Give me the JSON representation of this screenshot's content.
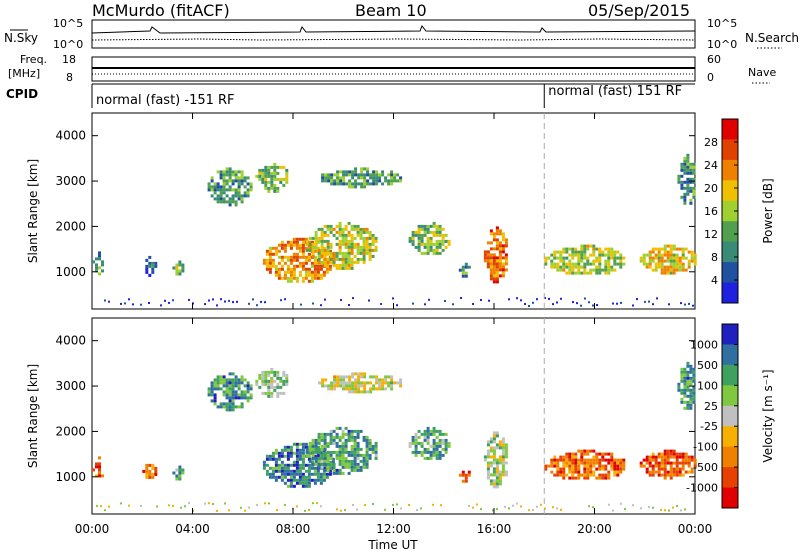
{
  "header": {
    "station": "McMurdo (fitACF)",
    "beam": "Beam 10",
    "date": "05/Sep/2015"
  },
  "side_labels": {
    "n_sky": "N.Sky",
    "n_search": "N.Search",
    "freq": "Freq.",
    "freq_unit": "[MHz]",
    "nave": "Nave",
    "cpid": "CPID",
    "noise_top": "10^5",
    "noise_bottom": "10^0",
    "freq_top": "18",
    "freq_bottom": "8",
    "nave_top": "60",
    "nave_bottom": "0"
  },
  "cpid_segments": [
    {
      "label": "normal (fast) -151 RF",
      "start_hour": 0
    },
    {
      "label": "normal (fast) 151 RF",
      "start_hour": 18
    }
  ],
  "colors": {
    "power": [
      "#2020e0",
      "#2050a0",
      "#3a8a78",
      "#50a050",
      "#a0d030",
      "#f0c000",
      "#f08000",
      "#e04000",
      "#e00000"
    ],
    "velocity": [
      "#e00000",
      "#e84000",
      "#f08000",
      "#f8b000",
      "#c0c0c0",
      "#80c840",
      "#40a060",
      "#3070a0",
      "#2020c0"
    ]
  },
  "chart_data": [
    {
      "type": "heatmap",
      "name": "power",
      "ylabel": "Slant Range [km]",
      "xlabel": "Time UT",
      "xlim": [
        0,
        24
      ],
      "ylim": [
        180,
        4500
      ],
      "x_ticks": [
        "00:00",
        "04:00",
        "08:00",
        "12:00",
        "16:00",
        "20:00",
        "00:00"
      ],
      "y_ticks": [
        1000,
        2000,
        3000,
        4000
      ],
      "colorbar": {
        "label": "Power [dB]",
        "ticks": [
          "4",
          "8",
          "12",
          "16",
          "20",
          "24",
          "28"
        ]
      },
      "cpid_change_hour": 18,
      "echo_regions": [
        {
          "hours": [
            0.0,
            0.4
          ],
          "range_km": [
            950,
            1450
          ],
          "level": 0.3
        },
        {
          "hours": [
            2.0,
            2.5
          ],
          "range_km": [
            950,
            1350
          ],
          "level": 0.2
        },
        {
          "hours": [
            3.2,
            3.6
          ],
          "range_km": [
            950,
            1250
          ],
          "level": 0.4
        },
        {
          "hours": [
            4.6,
            6.3
          ],
          "range_km": [
            2500,
            3300
          ],
          "level": 0.35
        },
        {
          "hours": [
            6.5,
            7.8
          ],
          "range_km": [
            2800,
            3400
          ],
          "level": 0.45
        },
        {
          "hours": [
            6.8,
            9.6
          ],
          "range_km": [
            800,
            1750
          ],
          "level": 0.7
        },
        {
          "hours": [
            8.5,
            11.3
          ],
          "range_km": [
            1100,
            2100
          ],
          "level": 0.55
        },
        {
          "hours": [
            9.0,
            12.3
          ],
          "range_km": [
            2900,
            3300
          ],
          "level": 0.35
        },
        {
          "hours": [
            12.6,
            14.2
          ],
          "range_km": [
            1400,
            2100
          ],
          "level": 0.45
        },
        {
          "hours": [
            14.6,
            15.0
          ],
          "range_km": [
            900,
            1200
          ],
          "level": 0.35
        },
        {
          "hours": [
            15.6,
            16.5
          ],
          "range_km": [
            800,
            2000
          ],
          "level": 0.75
        },
        {
          "hours": [
            18.0,
            21.2
          ],
          "range_km": [
            950,
            1600
          ],
          "level": 0.5
        },
        {
          "hours": [
            21.8,
            24.0
          ],
          "range_km": [
            1000,
            1600
          ],
          "level": 0.6
        },
        {
          "hours": [
            23.3,
            24.0
          ],
          "range_km": [
            2500,
            3600
          ],
          "level": 0.3
        }
      ]
    },
    {
      "type": "heatmap",
      "name": "velocity",
      "ylabel": "Slant Range [km]",
      "xlabel": "Time UT",
      "xlim": [
        0,
        24
      ],
      "ylim": [
        180,
        4500
      ],
      "x_ticks": [
        "00:00",
        "04:00",
        "08:00",
        "12:00",
        "16:00",
        "20:00",
        "00:00"
      ],
      "y_ticks": [
        1000,
        2000,
        3000,
        4000
      ],
      "colorbar": {
        "label": "Velocity [m s⁻¹]",
        "ticks": [
          "1000",
          "500",
          "100",
          "25",
          "-25",
          "-100",
          "-500",
          "-1000"
        ]
      },
      "cpid_change_hour": 18,
      "echo_regions": [
        {
          "hours": [
            0.0,
            0.4
          ],
          "range_km": [
            950,
            1450
          ],
          "level": 0.2
        },
        {
          "hours": [
            2.0,
            2.5
          ],
          "range_km": [
            950,
            1350
          ],
          "level": 0.25
        },
        {
          "hours": [
            3.2,
            3.6
          ],
          "range_km": [
            950,
            1250
          ],
          "level": 0.7
        },
        {
          "hours": [
            4.6,
            6.3
          ],
          "range_km": [
            2500,
            3300
          ],
          "level": 0.75
        },
        {
          "hours": [
            6.5,
            7.8
          ],
          "range_km": [
            2800,
            3400
          ],
          "level": 0.6
        },
        {
          "hours": [
            6.8,
            9.6
          ],
          "range_km": [
            800,
            1750
          ],
          "level": 0.8
        },
        {
          "hours": [
            8.5,
            11.3
          ],
          "range_km": [
            1100,
            2100
          ],
          "level": 0.72
        },
        {
          "hours": [
            9.0,
            12.3
          ],
          "range_km": [
            2900,
            3300
          ],
          "level": 0.5
        },
        {
          "hours": [
            12.6,
            14.2
          ],
          "range_km": [
            1400,
            2100
          ],
          "level": 0.7
        },
        {
          "hours": [
            14.6,
            15.0
          ],
          "range_km": [
            900,
            1200
          ],
          "level": 0.25
        },
        {
          "hours": [
            15.6,
            16.5
          ],
          "range_km": [
            800,
            2000
          ],
          "level": 0.55
        },
        {
          "hours": [
            18.0,
            21.2
          ],
          "range_km": [
            950,
            1600
          ],
          "level": 0.22
        },
        {
          "hours": [
            21.8,
            24.0
          ],
          "range_km": [
            1000,
            1600
          ],
          "level": 0.2
        },
        {
          "hours": [
            23.3,
            24.0
          ],
          "range_km": [
            2500,
            3600
          ],
          "level": 0.75
        }
      ]
    }
  ]
}
